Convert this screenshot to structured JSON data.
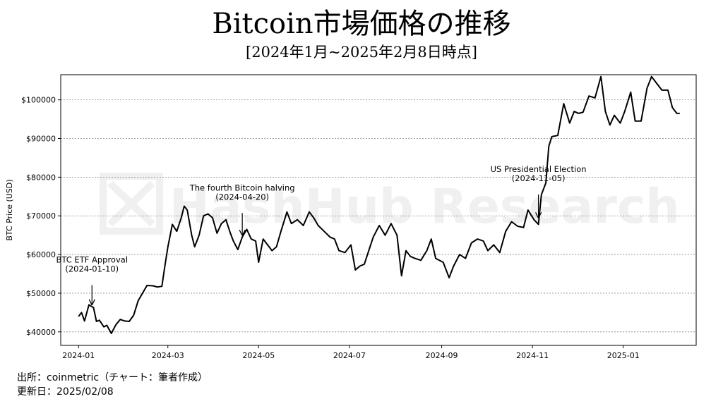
{
  "header": {
    "title": "Bitcoin市場価格の推移",
    "subtitle": "[2024年1月~2025年2月8日時点]"
  },
  "watermark": "HashHub Research",
  "footer": {
    "source": "出所：coinmetric（チャート：筆者作成）",
    "updated": "更新日：2025/02/08"
  },
  "colors": {
    "line": "#000000",
    "grid": "#888888",
    "watermark": "#f0f0f0"
  },
  "chart_data": {
    "type": "line",
    "title": "Bitcoin市場価格の推移",
    "subtitle": "[2024年1月~2025年2月8日時点]",
    "xlabel": "",
    "ylabel": "BTC Price (USD)",
    "ylim": [
      36500,
      106500
    ],
    "xlim": [
      "2023-12-20",
      "2025-02-19"
    ],
    "grid": "horizontal-dashed",
    "legend": "none",
    "y_ticks": [
      40000,
      50000,
      60000,
      70000,
      80000,
      90000,
      100000
    ],
    "y_tick_labels": [
      "$40000",
      "$50000",
      "$60000",
      "$70000",
      "$80000",
      "$90000",
      "$100000"
    ],
    "x_ticks": [
      "2024-01-01",
      "2024-03-01",
      "2024-05-01",
      "2024-07-01",
      "2024-09-01",
      "2024-11-01",
      "2025-01-01"
    ],
    "x_tick_labels": [
      "2024-01",
      "2024-03",
      "2024-05",
      "2024-07",
      "2024-09",
      "2024-11",
      "2025-01"
    ],
    "series": [
      {
        "x": [
          "2024-01-01",
          "2024-01-03",
          "2024-01-05",
          "2024-01-08",
          "2024-01-10",
          "2024-01-11",
          "2024-01-13",
          "2024-01-15",
          "2024-01-18",
          "2024-01-20",
          "2024-01-23",
          "2024-01-26",
          "2024-01-29",
          "2024-02-01",
          "2024-02-04",
          "2024-02-07",
          "2024-02-10",
          "2024-02-13",
          "2024-02-16",
          "2024-02-20",
          "2024-02-23",
          "2024-02-26",
          "2024-02-28",
          "2024-03-01",
          "2024-03-04",
          "2024-03-07",
          "2024-03-10",
          "2024-03-12",
          "2024-03-14",
          "2024-03-17",
          "2024-03-19",
          "2024-03-22",
          "2024-03-25",
          "2024-03-28",
          "2024-03-31",
          "2024-04-03",
          "2024-04-06",
          "2024-04-09",
          "2024-04-12",
          "2024-04-14",
          "2024-04-17",
          "2024-04-20",
          "2024-04-23",
          "2024-04-26",
          "2024-04-29",
          "2024-05-01",
          "2024-05-04",
          "2024-05-07",
          "2024-05-10",
          "2024-05-13",
          "2024-05-16",
          "2024-05-20",
          "2024-05-23",
          "2024-05-27",
          "2024-05-31",
          "2024-06-04",
          "2024-06-07",
          "2024-06-10",
          "2024-06-14",
          "2024-06-18",
          "2024-06-21",
          "2024-06-24",
          "2024-06-28",
          "2024-07-02",
          "2024-07-05",
          "2024-07-08",
          "2024-07-11",
          "2024-07-14",
          "2024-07-17",
          "2024-07-21",
          "2024-07-25",
          "2024-07-29",
          "2024-08-02",
          "2024-08-05",
          "2024-08-08",
          "2024-08-11",
          "2024-08-14",
          "2024-08-18",
          "2024-08-22",
          "2024-08-25",
          "2024-08-28",
          "2024-09-02",
          "2024-09-06",
          "2024-09-09",
          "2024-09-13",
          "2024-09-17",
          "2024-09-21",
          "2024-09-25",
          "2024-09-29",
          "2024-10-02",
          "2024-10-06",
          "2024-10-10",
          "2024-10-14",
          "2024-10-18",
          "2024-10-22",
          "2024-10-26",
          "2024-10-29",
          "2024-11-02",
          "2024-11-05",
          "2024-11-07",
          "2024-11-10",
          "2024-11-12",
          "2024-11-14",
          "2024-11-18",
          "2024-11-22",
          "2024-11-26",
          "2024-11-29",
          "2024-12-02",
          "2024-12-05",
          "2024-12-09",
          "2024-12-13",
          "2024-12-17",
          "2024-12-20",
          "2024-12-23",
          "2024-12-26",
          "2024-12-30",
          "2025-01-02",
          "2025-01-06",
          "2025-01-09",
          "2025-01-13",
          "2025-01-17",
          "2025-01-20",
          "2025-01-23",
          "2025-01-27",
          "2025-01-31",
          "2025-02-03",
          "2025-02-06",
          "2025-02-08"
        ],
        "y": [
          44000,
          45000,
          42800,
          47000,
          46500,
          46300,
          42700,
          43000,
          41300,
          41700,
          39600,
          41800,
          43200,
          42800,
          42700,
          44300,
          48000,
          50000,
          52000,
          51900,
          51600,
          51800,
          57000,
          62000,
          67800,
          66000,
          69500,
          72500,
          71500,
          65000,
          62000,
          65000,
          70000,
          70500,
          69500,
          65500,
          68000,
          69000,
          65500,
          63500,
          61300,
          64500,
          66500,
          64000,
          63500,
          58000,
          64000,
          62500,
          61000,
          62000,
          66000,
          71000,
          68000,
          69000,
          67500,
          71000,
          69500,
          67500,
          66000,
          64500,
          64000,
          61000,
          60500,
          62500,
          56000,
          57000,
          57500,
          61000,
          64500,
          67500,
          65000,
          68000,
          65000,
          54500,
          61000,
          59500,
          59000,
          58500,
          61000,
          64000,
          59000,
          58000,
          54000,
          57000,
          60000,
          59000,
          63000,
          64000,
          63500,
          61000,
          62500,
          60500,
          66000,
          68500,
          67300,
          67000,
          71500,
          69000,
          67800,
          75500,
          78500,
          88000,
          90500,
          90800,
          99000,
          94000,
          97000,
          96500,
          96800,
          101000,
          100500,
          106000,
          97000,
          93500,
          96000,
          94000,
          97000,
          102000,
          94500,
          94500,
          103000,
          106000,
          104500,
          102500,
          102500,
          98000,
          96500,
          96500
        ]
      }
    ],
    "annotations": [
      {
        "text_lines": [
          "BTC ETF Approval",
          "(2024-01-10)"
        ],
        "x": "2024-01-10",
        "y": 46500,
        "text_y": 55400
      },
      {
        "text_lines": [
          "The fourth Bitcoin halving",
          "(2024-04-20)"
        ],
        "x": "2024-04-20",
        "y": 64500,
        "text_y": 74000
      },
      {
        "text_lines": [
          "US Presidential Election",
          "(2024-11-05)"
        ],
        "x": "2024-11-05",
        "y": 69000,
        "text_y": 78800
      }
    ]
  }
}
